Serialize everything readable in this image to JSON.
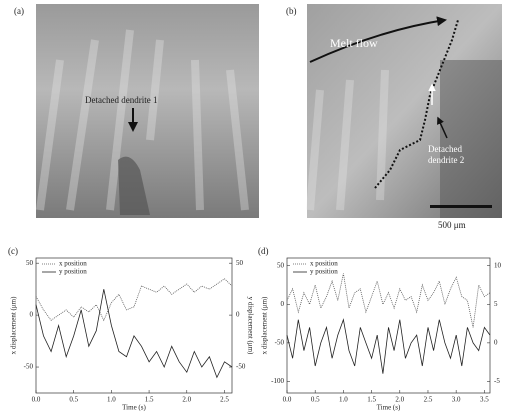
{
  "figure": {
    "panels": [
      {
        "label": "(a)",
        "annotations": [
          "Detached dendrite 1"
        ]
      },
      {
        "label": "(b)",
        "annotations": [
          "Melt flow",
          "Detached",
          "dendrite 2",
          "500 μm"
        ]
      }
    ]
  },
  "chart_data": [
    {
      "type": "line",
      "panel_label": "(c)",
      "xlabel": "Time (s)",
      "ylabel": "x displacement (μm)",
      "y2label": "y displacement (μm)",
      "x": [
        0,
        0.1,
        0.2,
        0.3,
        0.4,
        0.5,
        0.6,
        0.7,
        0.8,
        0.9,
        1.0,
        1.1,
        1.2,
        1.3,
        1.4,
        1.5,
        1.6,
        1.7,
        1.8,
        1.9,
        2.0,
        2.1,
        2.2,
        2.3,
        2.4,
        2.5,
        2.6
      ],
      "xlim": [
        0,
        2.6
      ],
      "xticks": [
        {
          "value": 0,
          "label": "0.0"
        },
        0.5,
        {
          "value": 1,
          "label": "1.0"
        },
        1.5,
        {
          "value": 2,
          "label": "2.0"
        },
        2.5
      ],
      "ylim": [
        -75,
        55
      ],
      "yticks": [
        -50,
        0,
        50
      ],
      "y2lim": [
        -75,
        55
      ],
      "y2ticks": [
        -50,
        0,
        50
      ],
      "legend": "upper left",
      "series": [
        {
          "name": "x position",
          "color": "#555555",
          "dash": "dotted",
          "values": [
            18,
            5,
            -5,
            0,
            5,
            -2,
            8,
            3,
            10,
            -5,
            12,
            20,
            5,
            8,
            28,
            25,
            22,
            28,
            20,
            25,
            30,
            22,
            28,
            25,
            30,
            35,
            28
          ]
        },
        {
          "name": "y position",
          "color": "#222222",
          "dash": "solid",
          "axis": "y2",
          "values": [
            10,
            -20,
            -35,
            -10,
            -40,
            -20,
            5,
            -30,
            -15,
            25,
            -10,
            -35,
            -40,
            -20,
            -30,
            -45,
            -35,
            -50,
            -30,
            -45,
            -55,
            -35,
            -50,
            -40,
            -60,
            -45,
            -50
          ]
        }
      ]
    },
    {
      "type": "line",
      "panel_label": "(d)",
      "xlabel": "Time (s)",
      "ylabel": "x displacement (μm)",
      "x": [
        0,
        0.1,
        0.2,
        0.3,
        0.4,
        0.5,
        0.6,
        0.7,
        0.8,
        0.9,
        1.0,
        1.1,
        1.2,
        1.3,
        1.4,
        1.5,
        1.6,
        1.7,
        1.8,
        1.9,
        2.0,
        2.1,
        2.2,
        2.3,
        2.4,
        2.5,
        2.6,
        2.7,
        2.8,
        2.9,
        3.0,
        3.1,
        3.2,
        3.3,
        3.4,
        3.5,
        3.6
      ],
      "xlim": [
        0,
        3.6
      ],
      "xticks": [
        {
          "value": 0,
          "label": "0.0"
        },
        0.5,
        {
          "value": 1,
          "label": "1.0"
        },
        1.5,
        {
          "value": 2,
          "label": "2.0"
        },
        2.5,
        {
          "value": 3,
          "label": "3.0"
        },
        3.5
      ],
      "ylim": [
        -115,
        60
      ],
      "yticks": [
        -100,
        -50,
        0,
        50
      ],
      "y2lim": [
        -6.5,
        11
      ],
      "y2ticks": [
        -5,
        0,
        5,
        10
      ],
      "legend": "upper left",
      "series": [
        {
          "name": "x position",
          "color": "#555555",
          "dash": "dotted",
          "values": [
            5,
            20,
            -10,
            15,
            0,
            25,
            -5,
            10,
            30,
            5,
            40,
            -5,
            15,
            20,
            -10,
            10,
            30,
            0,
            15,
            -5,
            20,
            5,
            10,
            -10,
            25,
            5,
            15,
            30,
            0,
            20,
            35,
            10,
            5,
            -30,
            25,
            10,
            15
          ]
        },
        {
          "name": "y position",
          "color": "#222222",
          "dash": "solid",
          "axis": "y2",
          "values": [
            1,
            -2,
            3,
            -1,
            2,
            -3,
            0,
            2,
            -2,
            1,
            3,
            -1,
            -3,
            2,
            0,
            -2,
            1,
            -4,
            2,
            -1,
            3,
            -2,
            0,
            1,
            -3,
            2,
            -1,
            3,
            0,
            -2,
            1,
            -3,
            2,
            0,
            -1,
            2,
            1
          ]
        }
      ]
    }
  ]
}
